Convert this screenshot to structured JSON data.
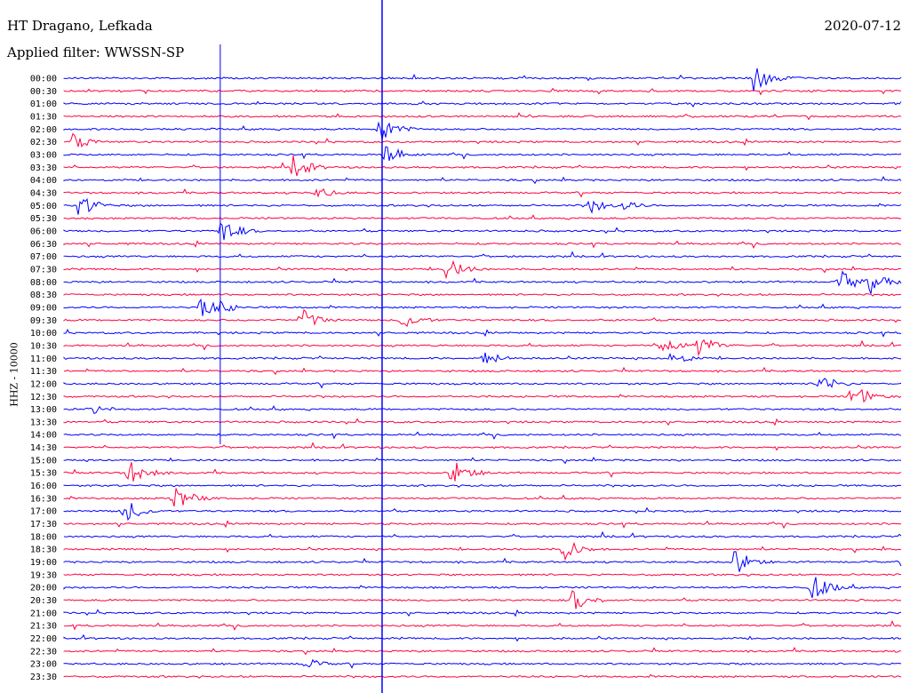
{
  "header": {
    "station": "HT Dragano, Lefkada",
    "filter": "Applied filter: WWSSN-SP",
    "date": "2020-07-12",
    "channel": "HHZ - 10000"
  },
  "colors": {
    "odd": "#0000ff",
    "even": "#ff0040",
    "marker": "#0000ff"
  },
  "chart_data": {
    "type": "helicorder",
    "title": "",
    "ylabel": "HHZ - 10000",
    "row_labels": [
      "00:00",
      "00:30",
      "01:00",
      "01:30",
      "02:00",
      "02:30",
      "03:00",
      "03:30",
      "04:00",
      "04:30",
      "05:00",
      "05:30",
      "06:00",
      "06:30",
      "07:00",
      "07:30",
      "08:00",
      "08:30",
      "09:00",
      "09:30",
      "10:00",
      "10:30",
      "11:00",
      "11:30",
      "12:00",
      "12:30",
      "13:00",
      "13:30",
      "14:00",
      "14:30",
      "15:00",
      "15:30",
      "16:00",
      "16:30",
      "17:00",
      "17:30",
      "18:00",
      "18:30",
      "19:00",
      "19:30",
      "20:00",
      "20:30",
      "21:00",
      "21:30",
      "22:00",
      "22:30",
      "23:00",
      "23:30"
    ],
    "minutes_per_row": 30,
    "markers": [
      {
        "name": "vertical-marker-1",
        "minute": 5.6
      },
      {
        "name": "vertical-marker-2",
        "minute": 11.4
      }
    ],
    "events": [
      {
        "row": 0,
        "minute": 24.7,
        "amp": 18
      },
      {
        "row": 4,
        "minute": 11.3,
        "amp": 16
      },
      {
        "row": 5,
        "minute": 0.3,
        "amp": 10
      },
      {
        "row": 6,
        "minute": 11.5,
        "amp": 12
      },
      {
        "row": 7,
        "minute": 8.2,
        "amp": 14
      },
      {
        "row": 9,
        "minute": 9.0,
        "amp": 8
      },
      {
        "row": 10,
        "minute": 0.5,
        "amp": 14
      },
      {
        "row": 10,
        "minute": 18.8,
        "amp": 10
      },
      {
        "row": 10,
        "minute": 19.9,
        "amp": 8
      },
      {
        "row": 12,
        "minute": 5.6,
        "amp": 16
      },
      {
        "row": 15,
        "minute": 13.7,
        "amp": 14
      },
      {
        "row": 16,
        "minute": 27.8,
        "amp": 14
      },
      {
        "row": 16,
        "minute": 28.9,
        "amp": 14
      },
      {
        "row": 18,
        "minute": 4.9,
        "amp": 14
      },
      {
        "row": 18,
        "minute": 5.6,
        "amp": 8
      },
      {
        "row": 19,
        "minute": 8.5,
        "amp": 14
      },
      {
        "row": 19,
        "minute": 12.1,
        "amp": 12
      },
      {
        "row": 21,
        "minute": 21.4,
        "amp": 12
      },
      {
        "row": 21,
        "minute": 22.7,
        "amp": 14
      },
      {
        "row": 22,
        "minute": 15.0,
        "amp": 10
      },
      {
        "row": 22,
        "minute": 21.7,
        "amp": 10
      },
      {
        "row": 24,
        "minute": 27.0,
        "amp": 14
      },
      {
        "row": 25,
        "minute": 28.2,
        "amp": 16
      },
      {
        "row": 26,
        "minute": 0.9,
        "amp": 8
      },
      {
        "row": 31,
        "minute": 2.3,
        "amp": 16
      },
      {
        "row": 31,
        "minute": 13.9,
        "amp": 16
      },
      {
        "row": 33,
        "minute": 3.9,
        "amp": 18
      },
      {
        "row": 34,
        "minute": 2.1,
        "amp": 16
      },
      {
        "row": 37,
        "minute": 17.9,
        "amp": 14
      },
      {
        "row": 38,
        "minute": 24.0,
        "amp": 16
      },
      {
        "row": 40,
        "minute": 26.8,
        "amp": 16
      },
      {
        "row": 41,
        "minute": 18.2,
        "amp": 14
      },
      {
        "row": 46,
        "minute": 8.6,
        "amp": 8
      }
    ]
  }
}
